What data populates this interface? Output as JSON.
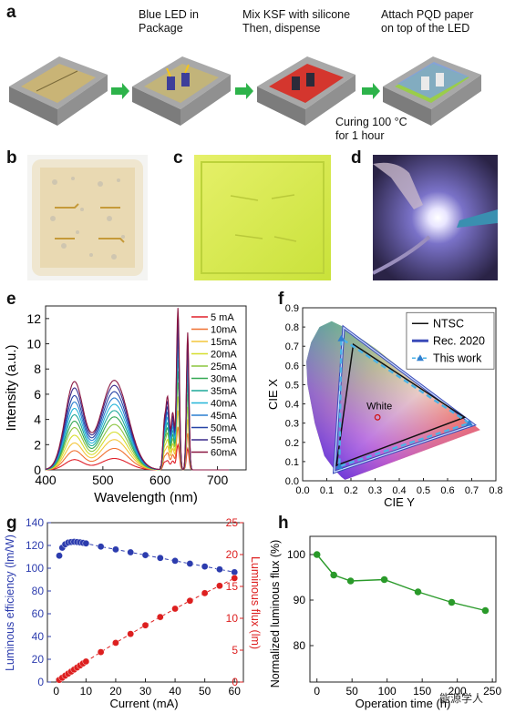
{
  "panels": {
    "a": {
      "label": "a",
      "steps": [
        "Blue LED in\nPackage",
        "Mix KSF with silicone\nThen, dispense",
        "Attach PQD paper\non top of the LED"
      ],
      "curing_note": "Curing 100 °C\nfor 1 hour"
    },
    "b": {
      "label": "b"
    },
    "c": {
      "label": "c"
    },
    "d": {
      "label": "d"
    },
    "e": {
      "label": "e"
    },
    "f": {
      "label": "f"
    },
    "g": {
      "label": "g"
    },
    "h": {
      "label": "h"
    }
  },
  "watermark": "能源学人",
  "colors": {
    "blue_series": "#2c3cae",
    "red_series": "#dd1f1f",
    "green_series": "#2a9a2a",
    "arrow_green": "#2db34a"
  },
  "chart_data": [
    {
      "id": "e",
      "type": "line",
      "xlabel": "Wavelength (nm)",
      "ylabel": "Intensity (a.u.)",
      "xlim": [
        400,
        750
      ],
      "ylim": [
        0,
        13
      ],
      "xticks": [
        400,
        500,
        600,
        700
      ],
      "yticks": [
        0,
        2,
        4,
        6,
        8,
        10,
        12
      ],
      "legend_position": "right",
      "series": [
        {
          "name": "5 mA",
          "color": "#e0202a",
          "peaks": [
            0.8,
            0.9,
            0.7,
            2.0,
            1.7
          ]
        },
        {
          "name": "10mA",
          "color": "#f07030",
          "peaks": [
            1.5,
            1.7,
            1.3,
            3.4,
            2.9
          ]
        },
        {
          "name": "15mA",
          "color": "#f3c53a",
          "peaks": [
            2.1,
            2.4,
            1.8,
            4.7,
            4.0
          ]
        },
        {
          "name": "20mA",
          "color": "#d6de2d",
          "peaks": [
            2.7,
            3.0,
            2.3,
            5.8,
            5.0
          ]
        },
        {
          "name": "25mA",
          "color": "#8bc53f",
          "peaks": [
            3.3,
            3.6,
            2.8,
            6.9,
            6.0
          ]
        },
        {
          "name": "30mA",
          "color": "#34a853",
          "peaks": [
            3.8,
            4.2,
            3.2,
            7.8,
            6.8
          ]
        },
        {
          "name": "35mA",
          "color": "#1fa89a",
          "peaks": [
            4.3,
            4.7,
            3.6,
            8.7,
            7.6
          ]
        },
        {
          "name": "40mA",
          "color": "#23b5d8",
          "peaks": [
            4.8,
            5.2,
            4.0,
            9.5,
            8.3
          ]
        },
        {
          "name": "45mA",
          "color": "#2a7ed0",
          "peaks": [
            5.3,
            5.7,
            4.4,
            10.3,
            9.0
          ]
        },
        {
          "name": "50mA",
          "color": "#2744a6",
          "peaks": [
            5.8,
            6.2,
            4.8,
            11.1,
            9.7
          ]
        },
        {
          "name": "55mA",
          "color": "#3a2a8a",
          "peaks": [
            6.4,
            6.7,
            5.2,
            11.9,
            10.3
          ]
        },
        {
          "name": "60mA",
          "color": "#8a1640",
          "peaks": [
            6.9,
            7.1,
            5.6,
            12.8,
            10.9
          ]
        }
      ],
      "peak_wavelengths_nm": [
        450,
        520,
        613,
        631,
        648
      ]
    },
    {
      "id": "f",
      "type": "scatter",
      "xlabel": "CIE Y",
      "ylabel": "CIE X",
      "xlim": [
        0.0,
        0.8
      ],
      "ylim": [
        0.0,
        0.9
      ],
      "xticks": [
        0.0,
        0.1,
        0.2,
        0.3,
        0.4,
        0.5,
        0.6,
        0.7,
        0.8
      ],
      "yticks": [
        0.0,
        0.1,
        0.2,
        0.3,
        0.4,
        0.5,
        0.6,
        0.7,
        0.8,
        0.9
      ],
      "legend_position": "top-right",
      "series": [
        {
          "name": "NTSC",
          "color": "#111111",
          "points": [
            [
              0.67,
              0.33
            ],
            [
              0.21,
              0.71
            ],
            [
              0.14,
              0.08
            ]
          ]
        },
        {
          "name": "Rec. 2020",
          "color": "#7fa6e0",
          "points": [
            [
              0.708,
              0.292
            ],
            [
              0.17,
              0.797
            ],
            [
              0.131,
              0.046
            ]
          ]
        },
        {
          "name": "This work",
          "color": "#4cb3e6",
          "points": [
            [
              0.69,
              0.3
            ],
            [
              0.16,
              0.74
            ],
            [
              0.152,
              0.075
            ]
          ]
        }
      ],
      "annotations": [
        {
          "text": "White",
          "x": 0.31,
          "y": 0.33
        }
      ]
    },
    {
      "id": "g",
      "type": "scatter",
      "xlabel": "Current (mA)",
      "ylabel": "Luminous efficiency (lm/W)",
      "ylabel_right": "Luminous flux (lm)",
      "xlim": [
        -3,
        63
      ],
      "ylim": [
        0,
        140
      ],
      "ylim_right": [
        0,
        25
      ],
      "xticks": [
        0,
        10,
        20,
        30,
        40,
        50,
        60
      ],
      "yticks": [
        0,
        20,
        40,
        60,
        80,
        100,
        120,
        140
      ],
      "yticks_right": [
        0,
        5,
        10,
        15,
        20,
        25
      ],
      "series": [
        {
          "name": "Luminous efficiency",
          "axis": "left",
          "color": "#2c3cae",
          "x": [
            1,
            2,
            3,
            4,
            5,
            6,
            7,
            8,
            9,
            10,
            15,
            20,
            25,
            30,
            35,
            40,
            45,
            50,
            55,
            60
          ],
          "y": [
            111,
            118,
            121,
            122.5,
            123,
            123.2,
            123,
            122.7,
            122.3,
            121.8,
            119,
            116.5,
            114,
            111.5,
            109,
            106.5,
            104,
            101.5,
            99,
            96.5
          ]
        },
        {
          "name": "Luminous flux",
          "axis": "right",
          "color": "#dd1f1f",
          "x": [
            1,
            2,
            3,
            4,
            5,
            6,
            7,
            8,
            9,
            10,
            15,
            20,
            25,
            30,
            35,
            40,
            45,
            50,
            55,
            60
          ],
          "y": [
            0.33,
            0.67,
            1.0,
            1.32,
            1.64,
            1.96,
            2.28,
            2.6,
            2.92,
            3.22,
            4.7,
            6.15,
            7.55,
            8.9,
            10.2,
            11.5,
            12.75,
            13.95,
            15.1,
            16.3
          ]
        }
      ]
    },
    {
      "id": "h",
      "type": "line",
      "xlabel": "Operation time (h)",
      "ylabel": "Normalized luminous flux (%)",
      "xlim": [
        -10,
        255
      ],
      "ylim": [
        72,
        104
      ],
      "xticks": [
        0,
        50,
        100,
        150,
        200,
        250
      ],
      "yticks": [
        80,
        90,
        100
      ],
      "series": [
        {
          "name": "",
          "color": "#2a9a2a",
          "x": [
            0,
            24,
            48,
            96,
            144,
            192,
            240
          ],
          "y": [
            100,
            95.5,
            94.2,
            94.5,
            91.8,
            89.5,
            87.7
          ]
        }
      ]
    }
  ]
}
